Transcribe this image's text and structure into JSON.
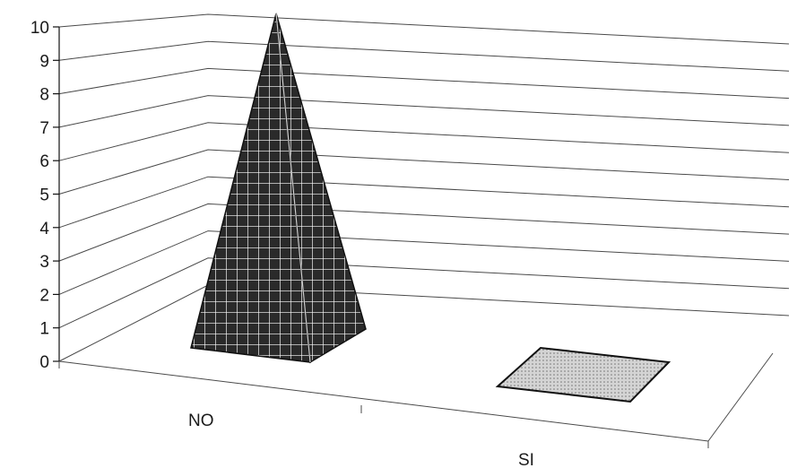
{
  "chart_data": {
    "type": "bar",
    "style": "3d-pyramid",
    "categories": [
      "NO",
      "SI"
    ],
    "values": [
      10,
      0
    ],
    "ylim": [
      0,
      10
    ],
    "yticks": [
      "0",
      "1",
      "2",
      "3",
      "4",
      "5",
      "6",
      "7",
      "8",
      "9",
      "10"
    ],
    "grid": true,
    "legend": "none",
    "colors": {
      "no_fill": "#2a2a2a",
      "no_grid": "#ffffff",
      "si_fill": "#d4d4d4",
      "outline": "#111111",
      "gridline": "#4a4a4a"
    }
  }
}
